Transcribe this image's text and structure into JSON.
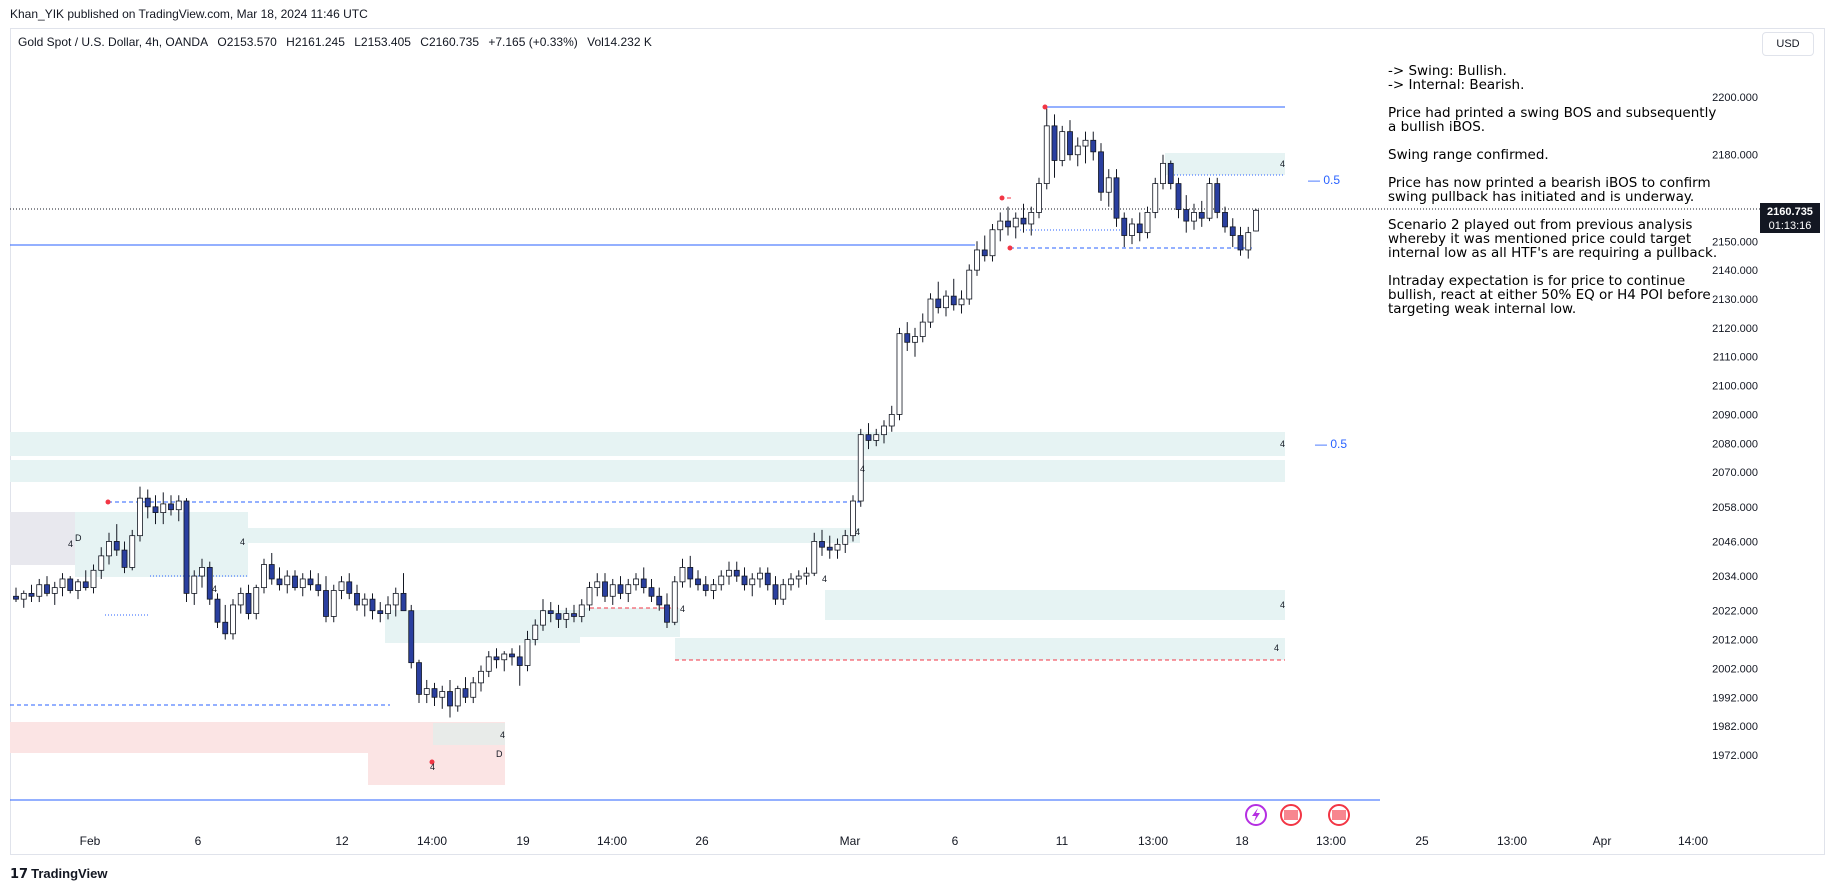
{
  "header": {
    "published": "Khan_YIK published on TradingView.com, Mar 18, 2024 11:46 UTC"
  },
  "symbol": {
    "title": "Gold Spot / U.S. Dollar, 4h, OANDA",
    "open": "O2153.570",
    "high": "H2161.245",
    "low": "L2153.405",
    "close": "C2160.735",
    "change": "+7.165 (+0.33%)",
    "volume": "Vol14.232 K"
  },
  "currency_button": "USD",
  "price_axis": {
    "ticks": [
      "2200.000",
      "2180.000",
      "2150.000",
      "2140.000",
      "2130.000",
      "2120.000",
      "2110.000",
      "2100.000",
      "2090.000",
      "2080.000",
      "2070.000",
      "2058.000",
      "2046.000",
      "2034.000",
      "2022.000",
      "2012.000",
      "2002.000",
      "1992.000",
      "1982.000",
      "1972.000"
    ],
    "last_price": "2160.735",
    "countdown": "01:13:16"
  },
  "time_axis": {
    "ticks": [
      "Feb",
      "6",
      "12",
      "14:00",
      "19",
      "14:00",
      "26",
      "Mar",
      "6",
      "11",
      "13:00",
      "18",
      "13:00",
      "25",
      "13:00",
      "Apr",
      "14:00"
    ]
  },
  "annotations": {
    "eq_label_upper": "— 0.5",
    "eq_label_lower": "— 0.5",
    "zone_label": "4",
    "d_label": "D"
  },
  "analysis": {
    "swing": "-> Swing:  Bullish.",
    "internal": "-> Internal:  Bearish.",
    "p1": "Price had printed a swing BOS and subsequently a bullish iBOS.",
    "p2": "Swing range confirmed.",
    "p3": "Price has now printed a bearish iBOS to confirm swing pullback has initiated and is underway.",
    "p4": "Scenario 2 played out from previous analysis whereby it was mentioned price could target internal low as all HTF's are requiring a pullback.",
    "p5": "Intraday expectation is for price to continue bullish, react at either 50% EQ or H4 POI before targeting weak internal low."
  },
  "footer": {
    "brand": "TradingView"
  },
  "colors": {
    "up_candle": "#ffffff",
    "down_candle": "#2a3f9f",
    "wick": "#131722",
    "demand_zone": "#e6f3f3",
    "supply_zone": "#fbe4e4",
    "blue_line": "#2962ff",
    "red_line": "#f23645",
    "price_label_bg": "#131722"
  },
  "candles": [
    [
      2027,
      2030,
      2025,
      2026
    ],
    [
      2026,
      2029,
      2023,
      2028
    ],
    [
      2028,
      2031,
      2025,
      2027
    ],
    [
      2027,
      2033,
      2025,
      2031
    ],
    [
      2031,
      2034,
      2027,
      2028
    ],
    [
      2028,
      2032,
      2024,
      2030
    ],
    [
      2030,
      2035,
      2027,
      2033
    ],
    [
      2033,
      2034,
      2028,
      2029
    ],
    [
      2029,
      2033,
      2026,
      2032
    ],
    [
      2032,
      2036,
      2029,
      2030
    ],
    [
      2030,
      2038,
      2028,
      2036
    ],
    [
      2036,
      2044,
      2033,
      2041
    ],
    [
      2041,
      2049,
      2038,
      2046
    ],
    [
      2046,
      2052,
      2041,
      2043
    ],
    [
      2043,
      2046,
      2035,
      2037
    ],
    [
      2037,
      2050,
      2036,
      2048
    ],
    [
      2048,
      2065,
      2046,
      2061
    ],
    [
      2061,
      2064,
      2054,
      2058
    ],
    [
      2058,
      2062,
      2052,
      2056
    ],
    [
      2056,
      2063,
      2052,
      2059
    ],
    [
      2059,
      2062,
      2055,
      2057
    ],
    [
      2057,
      2062,
      2053,
      2060
    ],
    [
      2060,
      2061,
      2025,
      2028
    ],
    [
      2028,
      2036,
      2024,
      2034
    ],
    [
      2034,
      2040,
      2030,
      2037
    ],
    [
      2037,
      2039,
      2024,
      2026
    ],
    [
      2026,
      2028,
      2016,
      2018
    ],
    [
      2018,
      2024,
      2012,
      2014
    ],
    [
      2014,
      2026,
      2012,
      2024
    ],
    [
      2024,
      2030,
      2021,
      2028
    ],
    [
      2028,
      2031,
      2019,
      2021
    ],
    [
      2021,
      2031,
      2019,
      2030
    ],
    [
      2030,
      2040,
      2028,
      2038
    ],
    [
      2038,
      2042,
      2031,
      2033
    ],
    [
      2033,
      2037,
      2029,
      2031
    ],
    [
      2031,
      2036,
      2028,
      2034
    ],
    [
      2034,
      2036,
      2029,
      2030
    ],
    [
      2030,
      2035,
      2027,
      2033
    ],
    [
      2033,
      2036,
      2029,
      2031
    ],
    [
      2031,
      2035,
      2027,
      2029
    ],
    [
      2029,
      2034,
      2018,
      2020
    ],
    [
      2020,
      2031,
      2018,
      2029
    ],
    [
      2029,
      2034,
      2026,
      2032
    ],
    [
      2032,
      2035,
      2026,
      2028
    ],
    [
      2028,
      2031,
      2022,
      2024
    ],
    [
      2024,
      2028,
      2020,
      2026
    ],
    [
      2026,
      2028,
      2019,
      2022
    ],
    [
      2022,
      2025,
      2018,
      2021
    ],
    [
      2021,
      2027,
      2019,
      2024
    ],
    [
      2024,
      2030,
      2020,
      2028
    ],
    [
      2028,
      2035,
      2024,
      2022
    ],
    [
      2022,
      2024,
      2002,
      2004
    ],
    [
      2004,
      2005,
      1990,
      1993
    ],
    [
      1993,
      1998,
      1990,
      1995
    ],
    [
      1995,
      1997,
      1989,
      1992
    ],
    [
      1992,
      1996,
      1988,
      1994
    ],
    [
      1994,
      1998,
      1985,
      1989
    ],
    [
      1989,
      1996,
      1987,
      1995
    ],
    [
      1995,
      1999,
      1990,
      1992
    ],
    [
      1992,
      1999,
      1990,
      1997
    ],
    [
      1997,
      2003,
      1994,
      2001
    ],
    [
      2001,
      2008,
      1999,
      2006
    ],
    [
      2006,
      2009,
      2002,
      2005
    ],
    [
      2005,
      2008,
      2001,
      2007
    ],
    [
      2007,
      2009,
      2003,
      2006
    ],
    [
      2006,
      2010,
      1996,
      2003
    ],
    [
      2003,
      2015,
      2001,
      2012
    ],
    [
      2012,
      2019,
      2010,
      2017
    ],
    [
      2017,
      2026,
      2015,
      2022
    ],
    [
      2022,
      2025,
      2018,
      2021
    ],
    [
      2021,
      2024,
      2016,
      2019
    ],
    [
      2019,
      2023,
      2016,
      2021
    ],
    [
      2021,
      2024,
      2018,
      2020
    ],
    [
      2020,
      2026,
      2018,
      2024
    ],
    [
      2024,
      2032,
      2022,
      2030
    ],
    [
      2030,
      2035,
      2027,
      2032
    ],
    [
      2032,
      2035,
      2025,
      2027
    ],
    [
      2027,
      2033,
      2024,
      2031
    ],
    [
      2031,
      2034,
      2026,
      2028
    ],
    [
      2028,
      2033,
      2025,
      2031
    ],
    [
      2031,
      2035,
      2029,
      2033
    ],
    [
      2033,
      2037,
      2028,
      2030
    ],
    [
      2030,
      2033,
      2025,
      2027
    ],
    [
      2027,
      2030,
      2022,
      2024
    ],
    [
      2024,
      2028,
      2016,
      2018
    ],
    [
      2018,
      2034,
      2017,
      2032
    ],
    [
      2032,
      2040,
      2030,
      2037
    ],
    [
      2037,
      2041,
      2030,
      2033
    ],
    [
      2033,
      2036,
      2029,
      2031
    ],
    [
      2031,
      2034,
      2027,
      2029
    ],
    [
      2029,
      2033,
      2026,
      2031
    ],
    [
      2031,
      2036,
      2029,
      2034
    ],
    [
      2034,
      2039,
      2031,
      2036
    ],
    [
      2036,
      2039,
      2032,
      2034
    ],
    [
      2034,
      2037,
      2029,
      2031
    ],
    [
      2031,
      2035,
      2027,
      2033
    ],
    [
      2033,
      2037,
      2030,
      2035
    ],
    [
      2035,
      2037,
      2029,
      2031
    ],
    [
      2031,
      2034,
      2024,
      2026
    ],
    [
      2026,
      2033,
      2024,
      2031
    ],
    [
      2031,
      2035,
      2029,
      2033
    ],
    [
      2033,
      2036,
      2030,
      2034
    ],
    [
      2034,
      2037,
      2031,
      2035
    ],
    [
      2035,
      2049,
      2034,
      2046
    ],
    [
      2046,
      2050,
      2041,
      2044
    ],
    [
      2044,
      2048,
      2040,
      2043
    ],
    [
      2043,
      2047,
      2040,
      2045
    ],
    [
      2045,
      2050,
      2042,
      2048
    ],
    [
      2048,
      2062,
      2046,
      2060
    ],
    [
      2060,
      2085,
      2058,
      2083
    ],
    [
      2083,
      2087,
      2078,
      2081
    ],
    [
      2081,
      2085,
      2079,
      2083
    ],
    [
      2083,
      2088,
      2080,
      2086
    ],
    [
      2086,
      2093,
      2084,
      2090
    ],
    [
      2090,
      2120,
      2088,
      2118
    ],
    [
      2118,
      2122,
      2112,
      2115
    ],
    [
      2115,
      2120,
      2110,
      2117
    ],
    [
      2117,
      2125,
      2115,
      2122
    ],
    [
      2122,
      2132,
      2120,
      2130
    ],
    [
      2130,
      2136,
      2125,
      2127
    ],
    [
      2127,
      2133,
      2124,
      2131
    ],
    [
      2131,
      2137,
      2126,
      2128
    ],
    [
      2128,
      2133,
      2125,
      2130
    ],
    [
      2130,
      2142,
      2128,
      2140
    ],
    [
      2140,
      2150,
      2138,
      2147
    ],
    [
      2147,
      2152,
      2143,
      2145
    ],
    [
      2145,
      2156,
      2143,
      2154
    ],
    [
      2154,
      2160,
      2150,
      2157
    ],
    [
      2157,
      2162,
      2152,
      2155
    ],
    [
      2155,
      2160,
      2151,
      2158
    ],
    [
      2158,
      2163,
      2153,
      2156
    ],
    [
      2156,
      2162,
      2152,
      2160
    ],
    [
      2160,
      2172,
      2158,
      2170
    ],
    [
      2170,
      2196,
      2168,
      2190
    ],
    [
      2190,
      2194,
      2172,
      2178
    ],
    [
      2178,
      2190,
      2176,
      2188
    ],
    [
      2188,
      2192,
      2178,
      2180
    ],
    [
      2180,
      2186,
      2176,
      2183
    ],
    [
      2183,
      2188,
      2177,
      2185
    ],
    [
      2185,
      2188,
      2178,
      2181
    ],
    [
      2181,
      2184,
      2164,
      2167
    ],
    [
      2167,
      2175,
      2162,
      2172
    ],
    [
      2172,
      2175,
      2155,
      2158
    ],
    [
      2158,
      2160,
      2148,
      2152
    ],
    [
      2152,
      2158,
      2149,
      2156
    ],
    [
      2156,
      2160,
      2150,
      2153
    ],
    [
      2153,
      2162,
      2151,
      2160
    ],
    [
      2160,
      2172,
      2158,
      2170
    ],
    [
      2170,
      2180,
      2168,
      2177
    ],
    [
      2177,
      2178,
      2168,
      2170
    ],
    [
      2170,
      2172,
      2158,
      2161
    ],
    [
      2161,
      2166,
      2153,
      2157
    ],
    [
      2157,
      2163,
      2154,
      2160
    ],
    [
      2160,
      2164,
      2155,
      2158
    ],
    [
      2158,
      2172,
      2157,
      2170
    ],
    [
      2170,
      2172,
      2158,
      2160
    ],
    [
      2160,
      2162,
      2153,
      2155
    ],
    [
      2155,
      2158,
      2148,
      2152
    ],
    [
      2152,
      2155,
      2145,
      2147
    ],
    [
      2147,
      2155,
      2144,
      2153
    ],
    [
      2153.57,
      2161.245,
      2153.405,
      2160.735
    ]
  ]
}
